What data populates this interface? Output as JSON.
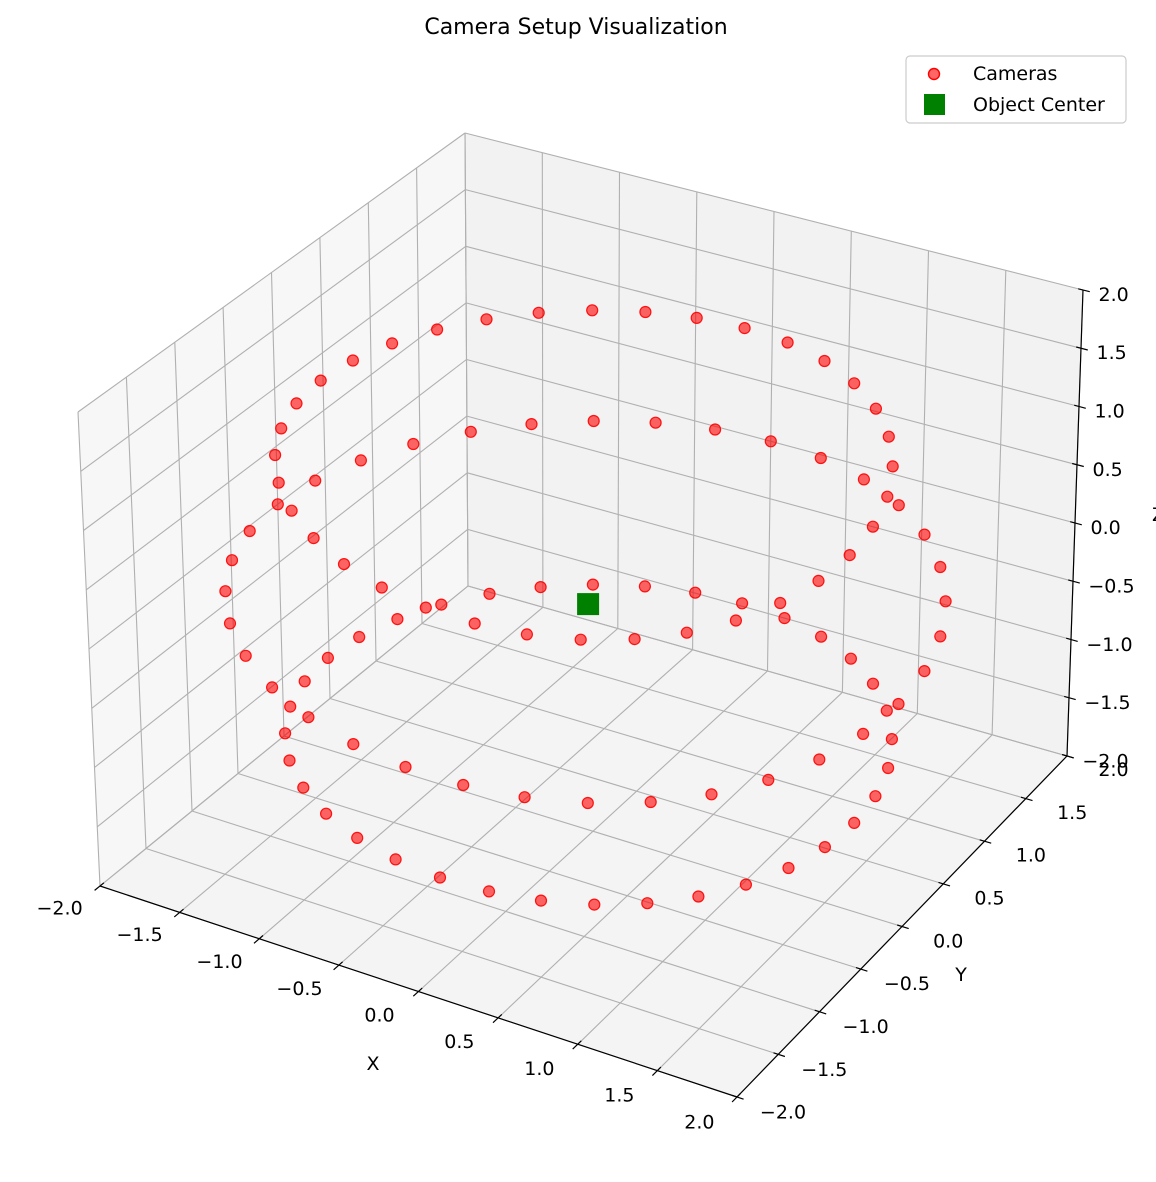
{
  "chart_data": {
    "type": "scatter3d",
    "title": "Camera Setup Visualization",
    "xlabel": "X",
    "ylabel": "Y",
    "zlabel": "Z",
    "xlim": [
      -2,
      2
    ],
    "ylim": [
      -2,
      2
    ],
    "zlim": [
      -2,
      2
    ],
    "ticks": [
      -2.0,
      -1.5,
      -1.0,
      -0.5,
      0.0,
      0.5,
      1.0,
      1.5,
      2.0
    ],
    "tick_labels": [
      "−2.0",
      "−1.5",
      "−1.0",
      "−0.5",
      "0.0",
      "0.5",
      "1.0",
      "1.5",
      "2.0"
    ],
    "grid": true,
    "legend_position": "top-right",
    "series": [
      {
        "name": "Cameras",
        "marker": "circle",
        "color": "#ff0000",
        "rings": [
          {
            "radius": 1.7,
            "z": -1.2,
            "count": 36
          },
          {
            "radius": 2.0,
            "z": 0.0,
            "count": 36
          },
          {
            "radius": 1.7,
            "z": 1.2,
            "count": 36
          }
        ]
      },
      {
        "name": "Object Center",
        "marker": "square",
        "color": "#008000",
        "points": [
          [
            0,
            0,
            0
          ]
        ]
      }
    ]
  }
}
